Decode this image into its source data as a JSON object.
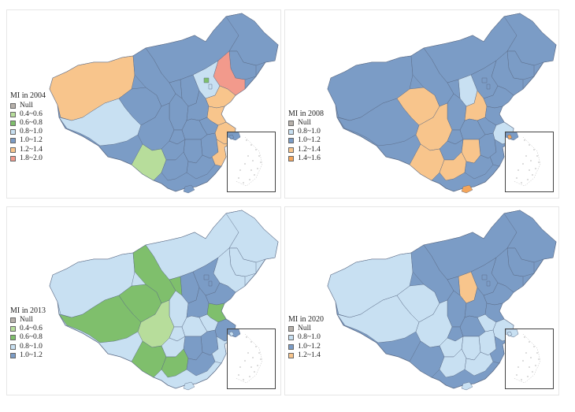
{
  "colors": {
    "null": "#b7b1ab",
    "r04_06": "#b7dd9b",
    "r06_08": "#7fbf6c",
    "r08_10": "#c8e0f2",
    "r10_12": "#7b9cc6",
    "r12_14": "#f8c58c",
    "r14_16": "#f4a55a",
    "r18_20": "#f29a8c",
    "border": "#5a6a85"
  },
  "panels": [
    {
      "id": "tl",
      "legend_title": "MI in 2004",
      "legend": [
        {
          "label": "Null",
          "color": "#b7b1ab"
        },
        {
          "label": "0.4~0.6",
          "color": "#b7dd9b"
        },
        {
          "label": "0.6~0.8",
          "color": "#7fbf6c"
        },
        {
          "label": "0.8~1.0",
          "color": "#c8e0f2"
        },
        {
          "label": "1.0~1.2",
          "color": "#7b9cc6"
        },
        {
          "label": "1.2~1.4",
          "color": "#f8c58c"
        },
        {
          "label": "1.8~2.0",
          "color": "#f29a8c"
        }
      ]
    },
    {
      "id": "tr",
      "legend_title": "MI in 2008",
      "legend": [
        {
          "label": "Null",
          "color": "#b7b1ab"
        },
        {
          "label": "0.8~1.0",
          "color": "#c8e0f2"
        },
        {
          "label": "1.0~1.2",
          "color": "#7b9cc6"
        },
        {
          "label": "1.2~1.4",
          "color": "#f8c58c"
        },
        {
          "label": "1.4~1.6",
          "color": "#f4a55a"
        }
      ]
    },
    {
      "id": "bl",
      "legend_title": "MI in 2013",
      "legend": [
        {
          "label": "Null",
          "color": "#b7b1ab"
        },
        {
          "label": "0.4~0.6",
          "color": "#b7dd9b"
        },
        {
          "label": "0.6~0.8",
          "color": "#7fbf6c"
        },
        {
          "label": "0.8~1.0",
          "color": "#c8e0f2"
        },
        {
          "label": "1.0~1.2",
          "color": "#7b9cc6"
        }
      ]
    },
    {
      "id": "br",
      "legend_title": "MI in 2020",
      "legend": [
        {
          "label": "Null",
          "color": "#b7b1ab"
        },
        {
          "label": "0.8~1.0",
          "color": "#c8e0f2"
        },
        {
          "label": "1.0~1.2",
          "color": "#7b9cc6"
        },
        {
          "label": "1.2~1.4",
          "color": "#f8c58c"
        }
      ]
    }
  ]
}
